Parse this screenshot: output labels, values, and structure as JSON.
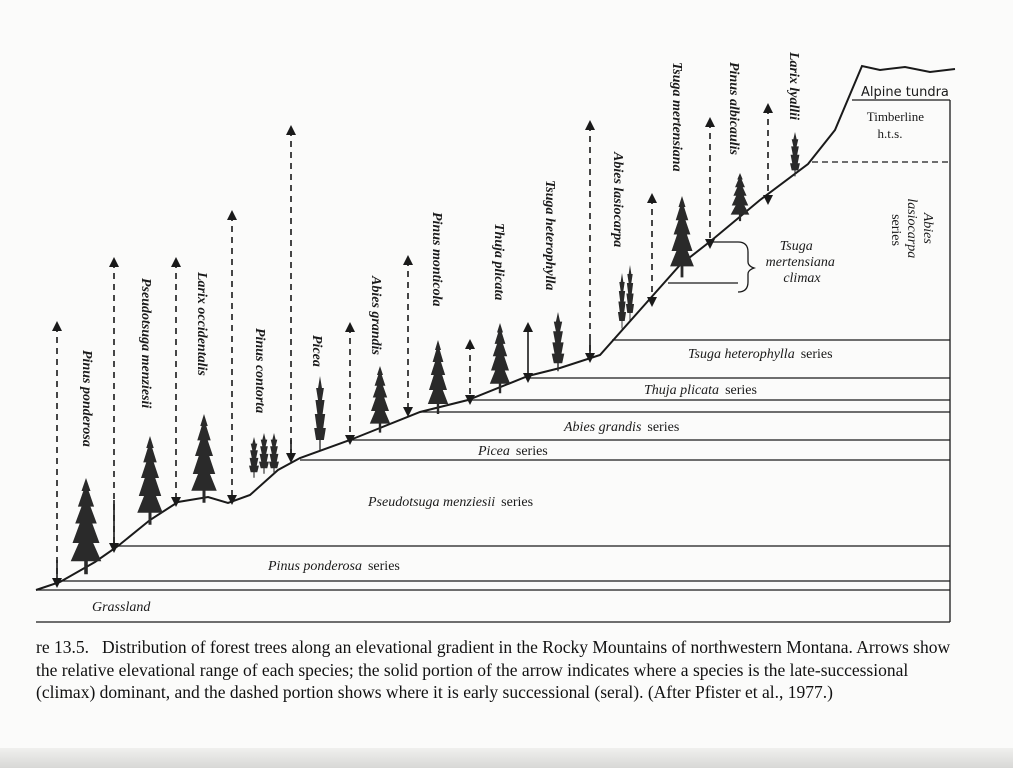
{
  "diagram": {
    "colors": {
      "ink": "#1a1a1a",
      "tree": "#2a2a2a",
      "paper": "#fbfbfa"
    },
    "zones": [
      {
        "name": "Grassland",
        "suffix": ""
      },
      {
        "name": "Pinus ponderosa",
        "suffix": "series"
      },
      {
        "name": "Pseudotsuga menziesii",
        "suffix": "series"
      },
      {
        "name": "Picea",
        "suffix": "series"
      },
      {
        "name": "Abies grandis",
        "suffix": "series"
      },
      {
        "name": "Thuja plicata",
        "suffix": "series"
      },
      {
        "name": "Tsuga heterophylla",
        "suffix": "series"
      },
      {
        "name": "Tsuga mertensiana climax",
        "lines": [
          "Tsuga",
          "mertensiana",
          "climax"
        ]
      },
      {
        "name": "Abies lasiocarpa series",
        "lines": [
          "Abies",
          "lasiocarpa",
          "series"
        ]
      },
      {
        "name": "Timberline h.t.s.",
        "lines": [
          "Timberline",
          "h.t.s."
        ]
      },
      {
        "name": "Alpine tundra"
      }
    ],
    "species": [
      "Pinus ponderosa",
      "Pseudotsuga menziesii",
      "Larix occidentalis",
      "Pinus contorta",
      "Picea",
      "Abies grandis",
      "Pinus monticola",
      "Thuja plicata",
      "Tsuga heterophylla",
      "Abies lasiocarpa",
      "Tsuga mertensiana",
      "Pinus albicaulis",
      "Larix lyallii"
    ]
  },
  "caption": {
    "label": "re 13.5.",
    "text": "Distribution of forest trees along an elevational gradient in the Rocky Mountains of northwestern Montana. Arrows show the relative elevational range of each species; the solid portion of the arrow indicates where a species is the late-successional (climax) dominant, and the dashed portion shows where it is early successional (seral). (After Pfister et al., 1977.)"
  }
}
